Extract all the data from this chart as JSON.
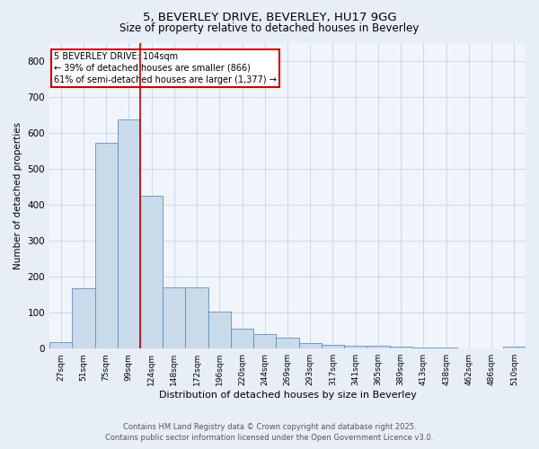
{
  "title_line1": "5, BEVERLEY DRIVE, BEVERLEY, HU17 9GG",
  "title_line2": "Size of property relative to detached houses in Beverley",
  "xlabel": "Distribution of detached houses by size in Beverley",
  "ylabel": "Number of detached properties",
  "categories": [
    "27sqm",
    "51sqm",
    "75sqm",
    "99sqm",
    "124sqm",
    "148sqm",
    "172sqm",
    "196sqm",
    "220sqm",
    "244sqm",
    "269sqm",
    "293sqm",
    "317sqm",
    "341sqm",
    "365sqm",
    "389sqm",
    "413sqm",
    "438sqm",
    "462sqm",
    "486sqm",
    "510sqm"
  ],
  "values": [
    18,
    168,
    572,
    636,
    425,
    170,
    170,
    104,
    56,
    40,
    30,
    15,
    10,
    9,
    7,
    5,
    3,
    2,
    1,
    0,
    5
  ],
  "bar_color": "#c9daea",
  "bar_edge_color": "#6090b8",
  "vline_x": 3.5,
  "vline_color": "#bb0000",
  "annotation_text": "5 BEVERLEY DRIVE: 104sqm\n← 39% of detached houses are smaller (866)\n61% of semi-detached houses are larger (1,377) →",
  "annotation_box_color": "#ffffff",
  "annotation_box_edge_color": "#cc0000",
  "ylim": [
    0,
    850
  ],
  "yticks": [
    0,
    100,
    200,
    300,
    400,
    500,
    600,
    700,
    800
  ],
  "footer_line1": "Contains HM Land Registry data © Crown copyright and database right 2025.",
  "footer_line2": "Contains public sector information licensed under the Open Government Licence v3.0.",
  "bg_color": "#e8eef8",
  "plot_bg_color": "#f0f4fb",
  "grid_color": "#c0cce0"
}
